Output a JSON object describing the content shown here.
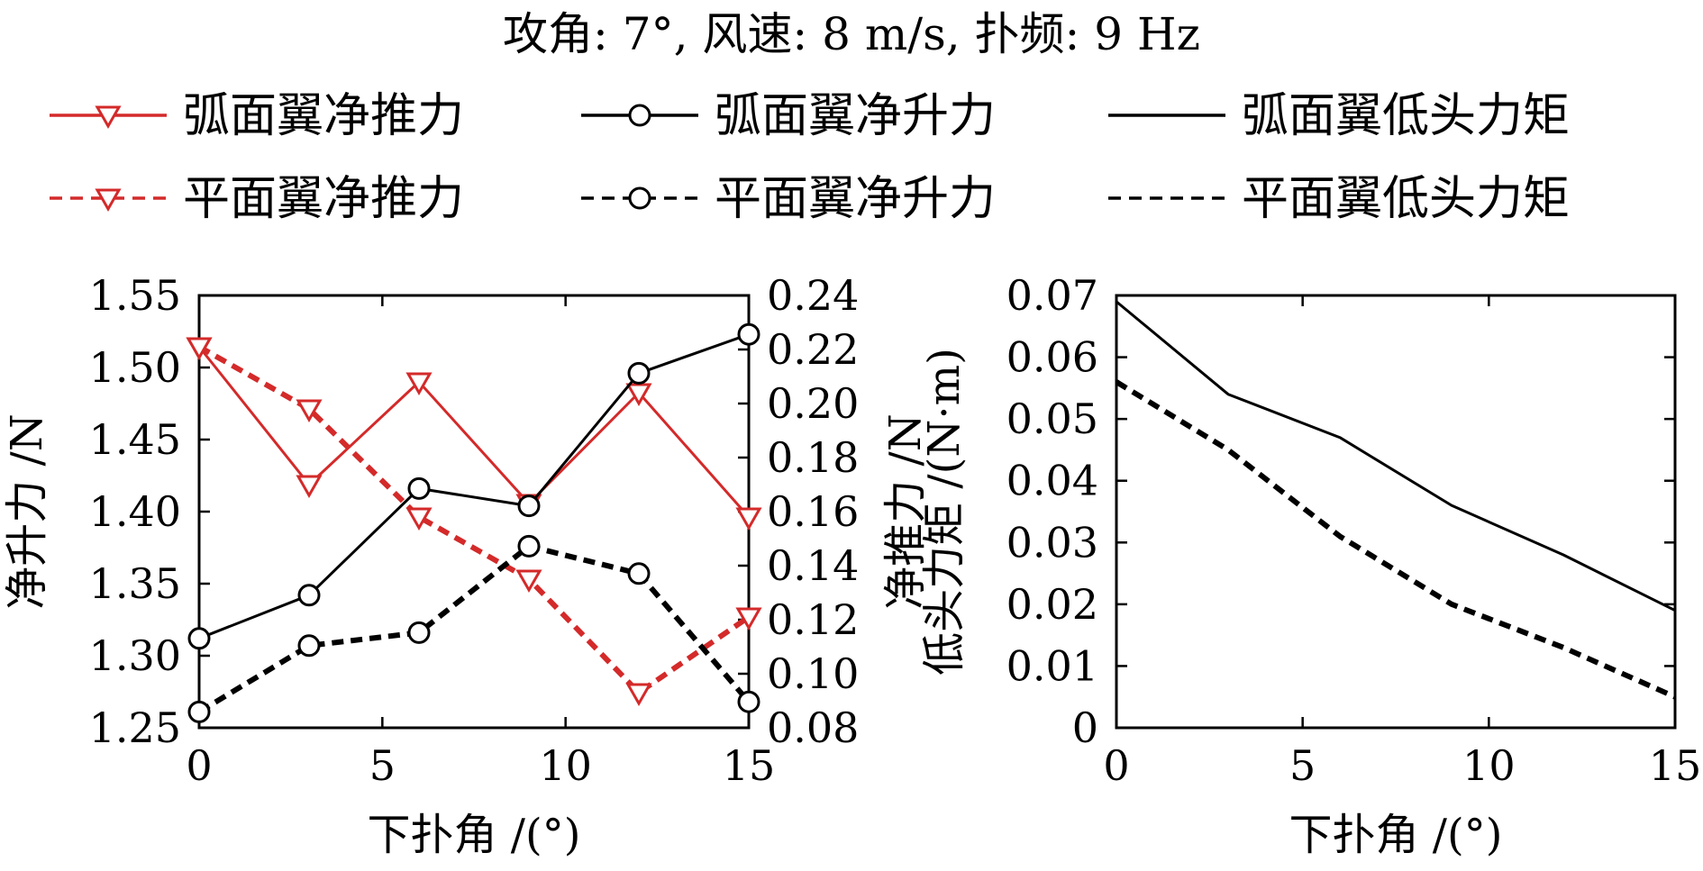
{
  "title": "攻角: 7°, 风速: 8 m/s, 扑频: 9 Hz",
  "colors": {
    "red": "#d42a2a",
    "black": "#000000"
  },
  "legend": [
    {
      "label": "弧面翼净推力",
      "color": "#d42a2a",
      "dash": "solid",
      "marker": "triangle-down"
    },
    {
      "label": "弧面翼净升力",
      "color": "#000000",
      "dash": "solid",
      "marker": "circle"
    },
    {
      "label": "弧面翼低头力矩",
      "color": "#000000",
      "dash": "solid",
      "marker": "none"
    },
    {
      "label": "平面翼净推力",
      "color": "#d42a2a",
      "dash": "dashed",
      "marker": "triangle-down"
    },
    {
      "label": "平面翼净升力",
      "color": "#000000",
      "dash": "dashed",
      "marker": "circle"
    },
    {
      "label": "平面翼低头力矩",
      "color": "#000000",
      "dash": "dashed",
      "marker": "none"
    }
  ],
  "chart_data": [
    {
      "type": "line",
      "xlabel": "下扑角 /(°)",
      "ylabel_left": "净升力 /N",
      "ylabel_right": "净推力 /N",
      "xlim": [
        0,
        15
      ],
      "xticks": [
        "0",
        "5",
        "10",
        "15"
      ],
      "ylim_left": [
        1.25,
        1.55
      ],
      "yticks_left": [
        "1.25",
        "1.30",
        "1.35",
        "1.40",
        "1.45",
        "1.50",
        "1.55"
      ],
      "ylim_right": [
        0.08,
        0.24
      ],
      "yticks_right": [
        "0.08",
        "0.10",
        "0.12",
        "0.14",
        "0.16",
        "0.18",
        "0.20",
        "0.22",
        "0.24"
      ],
      "grid": false,
      "x": [
        0,
        3,
        6,
        9,
        12,
        15
      ],
      "series": [
        {
          "name": "弧面翼净推力",
          "axis": "right",
          "color": "#d42a2a",
          "dash": "solid",
          "marker": "triangle-down",
          "values": [
            0.221,
            0.17,
            0.208,
            0.163,
            0.204,
            0.158
          ]
        },
        {
          "name": "平面翼净推力",
          "axis": "right",
          "color": "#d42a2a",
          "dash": "dashed",
          "marker": "triangle-down",
          "values": [
            0.221,
            0.198,
            0.158,
            0.135,
            0.093,
            0.121
          ]
        },
        {
          "name": "弧面翼净升力",
          "axis": "left",
          "color": "#000000",
          "dash": "solid",
          "marker": "circle",
          "values": [
            1.312,
            1.342,
            1.416,
            1.404,
            1.496,
            1.523
          ]
        },
        {
          "name": "平面翼净升力",
          "axis": "left",
          "color": "#000000",
          "dash": "dashed",
          "marker": "circle",
          "values": [
            1.261,
            1.307,
            1.316,
            1.376,
            1.357,
            1.268
          ]
        }
      ]
    },
    {
      "type": "line",
      "xlabel": "下扑角 /(°)",
      "ylabel": "低头力矩 /(N·m)",
      "xlim": [
        0,
        15
      ],
      "xticks": [
        "0",
        "5",
        "10",
        "15"
      ],
      "ylim": [
        0,
        0.07
      ],
      "yticks": [
        "0",
        "0.01",
        "0.02",
        "0.03",
        "0.04",
        "0.05",
        "0.06",
        "0.07"
      ],
      "grid": false,
      "x": [
        0,
        3,
        6,
        9,
        12,
        15
      ],
      "series": [
        {
          "name": "弧面翼低头力矩",
          "color": "#000000",
          "dash": "solid",
          "marker": "none",
          "values": [
            0.069,
            0.054,
            0.047,
            0.036,
            0.028,
            0.019
          ]
        },
        {
          "name": "平面翼低头力矩",
          "color": "#000000",
          "dash": "dashed",
          "marker": "none",
          "values": [
            0.056,
            0.045,
            0.031,
            0.02,
            0.013,
            0.005
          ]
        }
      ]
    }
  ]
}
